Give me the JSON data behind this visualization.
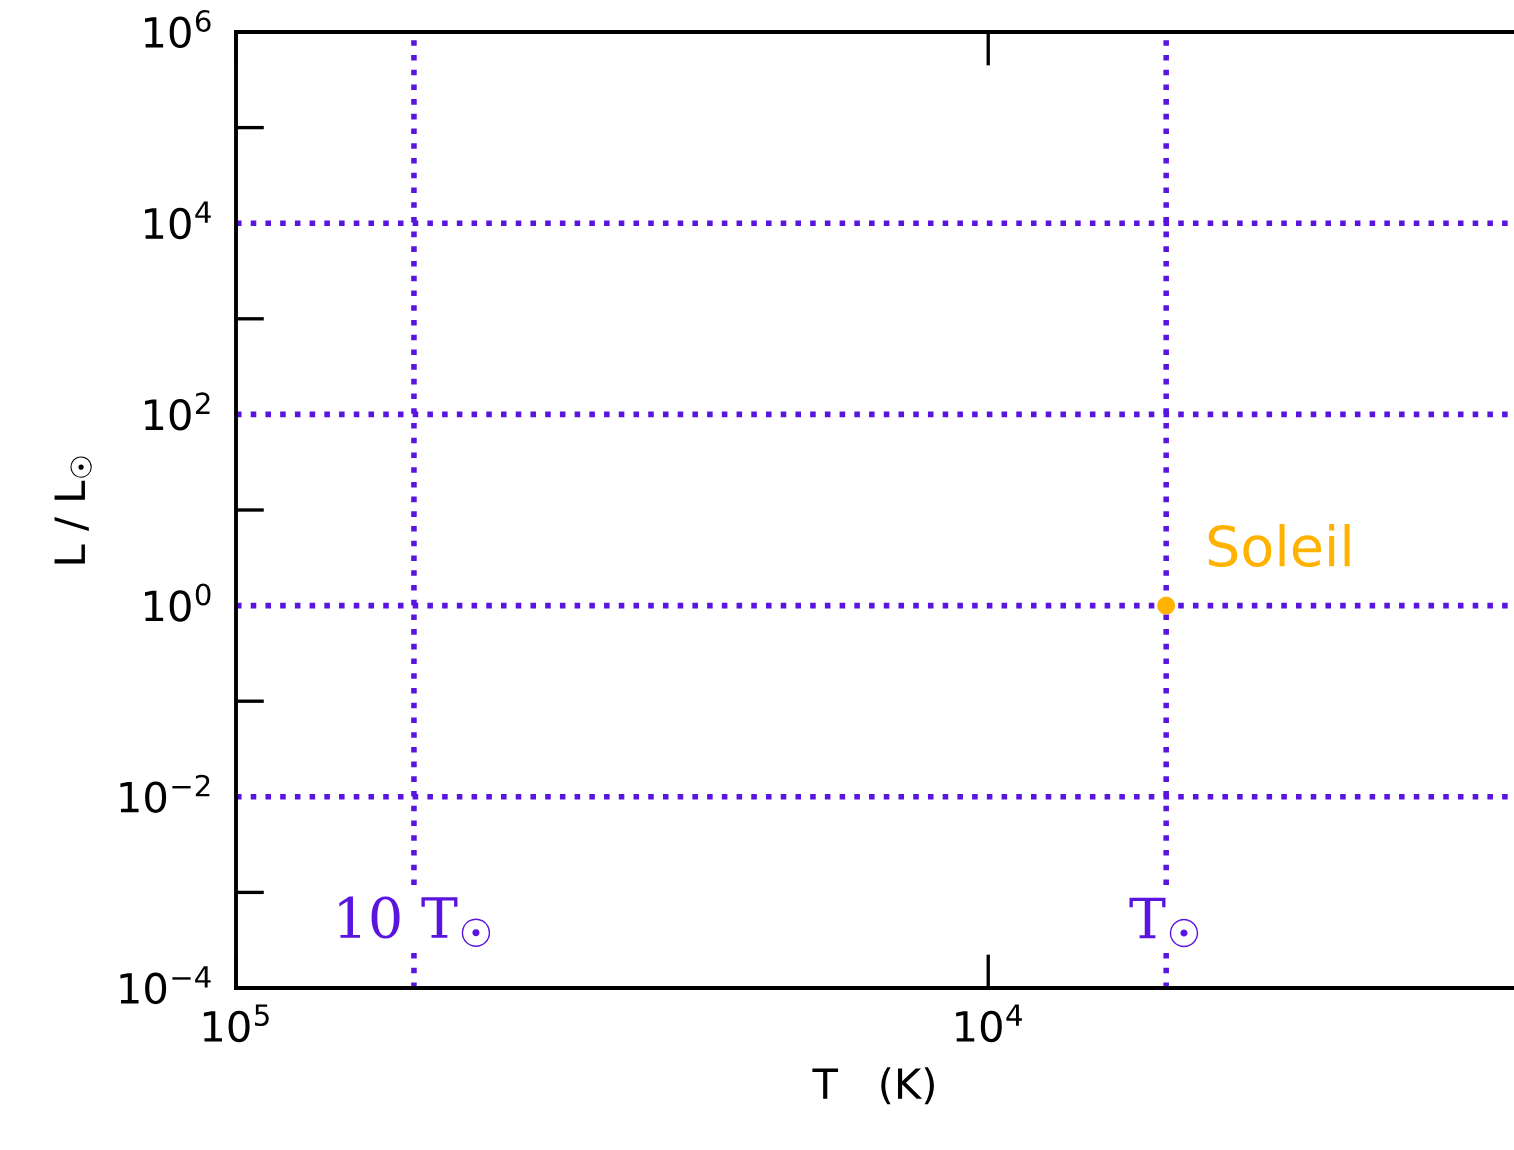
{
  "chart_data": {
    "type": "scatter",
    "xlabel": "T   (K)",
    "ylabel": "L / L$_{☉}$",
    "log": "xy",
    "grid": false,
    "marker": "circle",
    "x": [
      5800
    ],
    "series": [
      {
        "name": "Soleil",
        "color": "#ffb300",
        "values": [
          1
        ]
      }
    ],
    "xlim": [
      100000,
      2000
    ],
    "ylim": [
      0.0001,
      1000000
    ],
    "xticks": [
      {
        "value": 100000,
        "label": "10$^{5}$"
      },
      {
        "value": 10000,
        "label": "10$^{4}$"
      }
    ],
    "yticks": [
      {
        "value": 0.0001,
        "label": "10$^{−4}$"
      },
      {
        "value": 0.001,
        "label": null
      },
      {
        "value": 0.01,
        "label": "10$^{−2}$"
      },
      {
        "value": 0.1,
        "label": null
      },
      {
        "value": 1,
        "label": "10$^{0}$"
      },
      {
        "value": 10,
        "label": null
      },
      {
        "value": 100,
        "label": "10$^{2}$"
      },
      {
        "value": 1000,
        "label": null
      },
      {
        "value": 10000,
        "label": "10$^{4}$"
      },
      {
        "value": 100000,
        "label": null
      },
      {
        "value": 1000000,
        "label": "10$^{6}$"
      }
    ],
    "ref_lines": [
      {
        "axis": "y",
        "value": 10000,
        "color": "#5a14e0",
        "line_style": "dotted"
      },
      {
        "axis": "y",
        "value": 100,
        "color": "#5a14e0",
        "line_style": "dotted"
      },
      {
        "axis": "y",
        "value": 1,
        "color": "#5a14e0",
        "line_style": "dotted"
      },
      {
        "axis": "y",
        "value": 0.01,
        "color": "#5a14e0",
        "line_style": "dotted"
      },
      {
        "axis": "x",
        "value": 58000,
        "label": "10 T$_{☉}$",
        "color": "#5a14e0",
        "line_style": "dotted"
      },
      {
        "axis": "x",
        "value": 5800,
        "label": "T$_{☉}$",
        "color": "#5a14e0",
        "line_style": "dotted"
      }
    ]
  }
}
